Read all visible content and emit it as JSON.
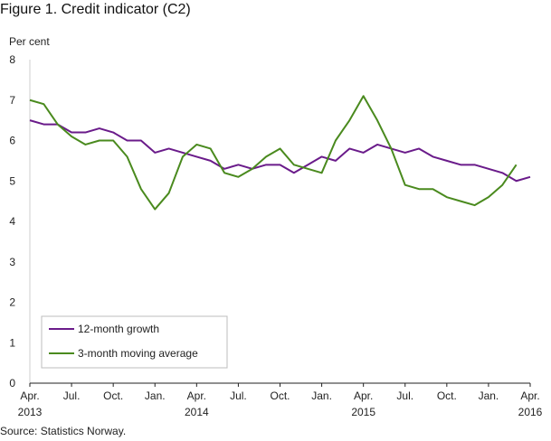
{
  "title": "Figure 1. Credit indicator (C2)",
  "source": "Source: Statistics Norway.",
  "chart_data": {
    "type": "line",
    "ylabel": "Per cent",
    "ylim": [
      0,
      8
    ],
    "yticks": [
      "0",
      "1",
      "2",
      "3",
      "4",
      "5",
      "6",
      "7",
      "8"
    ],
    "x_tick_labels": [
      {
        "month": "Apr.",
        "year": "2013"
      },
      {
        "month": "Jul.",
        "year": ""
      },
      {
        "month": "Oct.",
        "year": ""
      },
      {
        "month": "Jan.",
        "year": ""
      },
      {
        "month": "Apr.",
        "year": "2014"
      },
      {
        "month": "Jul.",
        "year": ""
      },
      {
        "month": "Oct.",
        "year": ""
      },
      {
        "month": "Jan.",
        "year": ""
      },
      {
        "month": "Apr.",
        "year": "2015"
      },
      {
        "month": "Jul.",
        "year": ""
      },
      {
        "month": "Oct.",
        "year": ""
      },
      {
        "month": "Jan.",
        "year": ""
      },
      {
        "month": "Apr.",
        "year": "2016"
      }
    ],
    "x": [
      "2013-04",
      "2013-05",
      "2013-06",
      "2013-07",
      "2013-08",
      "2013-09",
      "2013-10",
      "2013-11",
      "2013-12",
      "2014-01",
      "2014-02",
      "2014-03",
      "2014-04",
      "2014-05",
      "2014-06",
      "2014-07",
      "2014-08",
      "2014-09",
      "2014-10",
      "2014-11",
      "2014-12",
      "2015-01",
      "2015-02",
      "2015-03",
      "2015-04",
      "2015-05",
      "2015-06",
      "2015-07",
      "2015-08",
      "2015-09",
      "2015-10",
      "2015-11",
      "2015-12",
      "2016-01",
      "2016-02",
      "2016-03",
      "2016-04"
    ],
    "series": [
      {
        "name": "12-month growth",
        "color": "#6a1b8a",
        "values": [
          6.5,
          6.4,
          6.4,
          6.2,
          6.2,
          6.3,
          6.2,
          6.0,
          6.0,
          5.7,
          5.8,
          5.7,
          5.6,
          5.5,
          5.3,
          5.4,
          5.3,
          5.4,
          5.4,
          5.2,
          5.4,
          5.6,
          5.5,
          5.8,
          5.7,
          5.9,
          5.8,
          5.7,
          5.8,
          5.6,
          5.5,
          5.4,
          5.4,
          5.3,
          5.2,
          5.0,
          5.1
        ]
      },
      {
        "name": "3-month moving average",
        "color": "#4a8a1e",
        "values": [
          7.0,
          6.9,
          6.4,
          6.1,
          5.9,
          6.0,
          6.0,
          5.6,
          4.8,
          4.3,
          4.7,
          5.6,
          5.9,
          5.8,
          5.2,
          5.1,
          5.3,
          5.6,
          5.8,
          5.4,
          5.3,
          5.2,
          6.0,
          6.5,
          7.1,
          6.5,
          5.8,
          4.9,
          4.8,
          4.8,
          4.6,
          4.5,
          4.4,
          4.6,
          4.9,
          5.4,
          null
        ]
      }
    ],
    "grid": false,
    "legend_position": "bottom-left"
  }
}
